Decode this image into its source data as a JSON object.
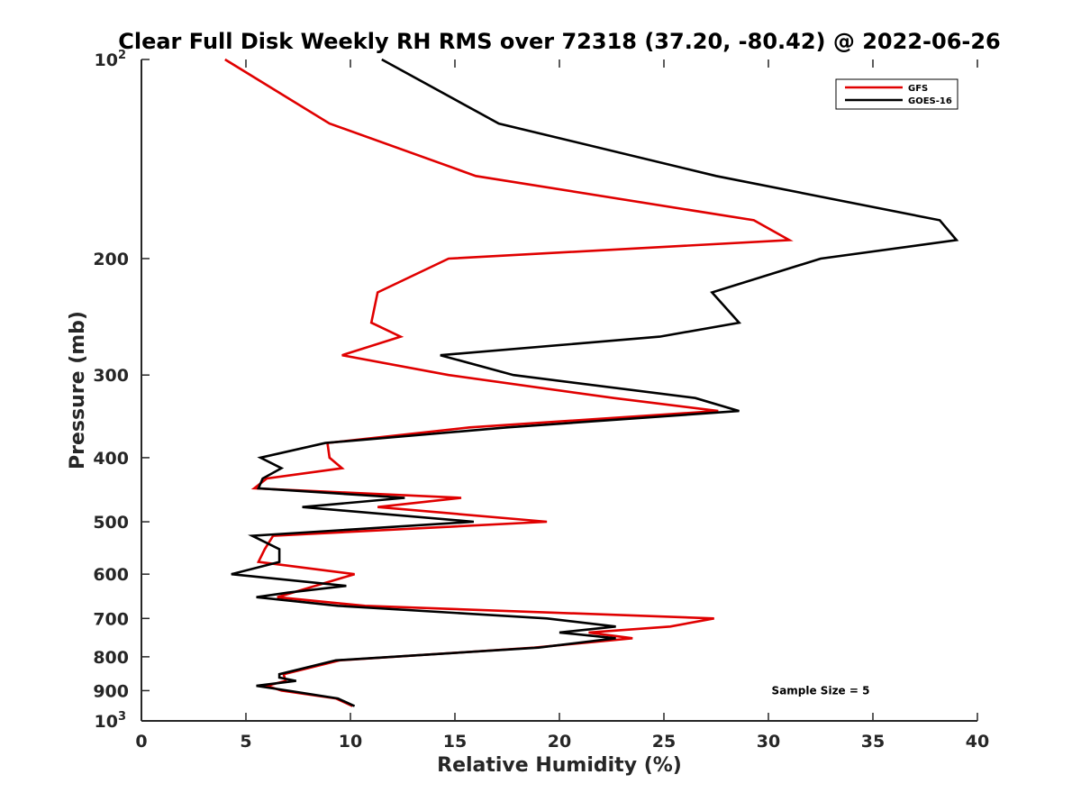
{
  "chart_data": {
    "type": "line",
    "title": "Clear Full Disk Weekly RH RMS over 72318 (37.20, -80.42) @ 2022-06-26",
    "xlabel": "Relative Humidity (%)",
    "ylabel": "Pressure (mb)",
    "xlim": [
      0,
      40
    ],
    "ylim": [
      100,
      1000
    ],
    "y_scale": "log",
    "y_reversed": true,
    "x_ticks": [
      {
        "value": 0,
        "label": "0"
      },
      {
        "value": 5,
        "label": "5"
      },
      {
        "value": 10,
        "label": "10"
      },
      {
        "value": 15,
        "label": "15"
      },
      {
        "value": 20,
        "label": "20"
      },
      {
        "value": 25,
        "label": "25"
      },
      {
        "value": 30,
        "label": "30"
      },
      {
        "value": 35,
        "label": "35"
      },
      {
        "value": 40,
        "label": "40"
      }
    ],
    "y_ticks": [
      {
        "value": 100,
        "label": "10",
        "sup": "2"
      },
      {
        "value": 200,
        "label": "200",
        "sup": ""
      },
      {
        "value": 300,
        "label": "300",
        "sup": ""
      },
      {
        "value": 400,
        "label": "400",
        "sup": ""
      },
      {
        "value": 500,
        "label": "500",
        "sup": ""
      },
      {
        "value": 600,
        "label": "600",
        "sup": ""
      },
      {
        "value": 700,
        "label": "700",
        "sup": ""
      },
      {
        "value": 800,
        "label": "800",
        "sup": ""
      },
      {
        "value": 900,
        "label": "900",
        "sup": ""
      },
      {
        "value": 1000,
        "label": "10",
        "sup": "3"
      }
    ],
    "grid": false,
    "legend_position": "top-right",
    "series": [
      {
        "name": "GFS",
        "color": "#e00000",
        "points": [
          [
            4.0,
            100
          ],
          [
            9.0,
            125
          ],
          [
            16.0,
            150
          ],
          [
            29.3,
            175
          ],
          [
            31.0,
            187.5
          ],
          [
            14.7,
            200
          ],
          [
            11.3,
            225
          ],
          [
            11.0,
            250
          ],
          [
            12.4,
            262.5
          ],
          [
            9.6,
            280
          ],
          [
            14.7,
            300
          ],
          [
            22.6,
            325
          ],
          [
            27.6,
            340
          ],
          [
            15.7,
            360
          ],
          [
            8.9,
            380
          ],
          [
            9.0,
            400
          ],
          [
            9.6,
            415
          ],
          [
            6.0,
            430
          ],
          [
            5.4,
            445
          ],
          [
            15.3,
            460
          ],
          [
            11.3,
            475
          ],
          [
            19.4,
            500
          ],
          [
            6.3,
            525
          ],
          [
            5.9,
            550
          ],
          [
            5.6,
            575
          ],
          [
            10.2,
            600
          ],
          [
            6.5,
            650
          ],
          [
            10.7,
            670
          ],
          [
            27.4,
            700
          ],
          [
            25.3,
            720
          ],
          [
            21.4,
            735
          ],
          [
            23.5,
            750
          ],
          [
            18.8,
            775
          ],
          [
            9.5,
            810
          ],
          [
            6.8,
            850
          ],
          [
            6.9,
            870
          ],
          [
            6.0,
            885
          ],
          [
            6.7,
            900
          ],
          [
            9.3,
            925
          ],
          [
            10.1,
            950
          ]
        ]
      },
      {
        "name": "GOES-16",
        "color": "#000000",
        "points": [
          [
            11.5,
            100
          ],
          [
            17.1,
            125
          ],
          [
            27.5,
            150
          ],
          [
            38.2,
            175
          ],
          [
            39.0,
            187.5
          ],
          [
            32.5,
            200
          ],
          [
            27.3,
            225
          ],
          [
            28.6,
            250
          ],
          [
            24.8,
            262.5
          ],
          [
            14.3,
            280
          ],
          [
            17.8,
            300
          ],
          [
            26.5,
            325
          ],
          [
            28.6,
            340
          ],
          [
            17.5,
            360
          ],
          [
            8.8,
            380
          ],
          [
            5.7,
            400
          ],
          [
            6.7,
            415
          ],
          [
            5.8,
            430
          ],
          [
            5.6,
            445
          ],
          [
            12.6,
            460
          ],
          [
            7.7,
            475
          ],
          [
            15.9,
            500
          ],
          [
            5.3,
            525
          ],
          [
            6.6,
            550
          ],
          [
            6.6,
            575
          ],
          [
            4.3,
            600
          ],
          [
            9.8,
            625
          ],
          [
            7.0,
            640
          ],
          [
            5.5,
            650
          ],
          [
            9.4,
            670
          ],
          [
            19.4,
            700
          ],
          [
            22.7,
            720
          ],
          [
            20.0,
            735
          ],
          [
            22.7,
            750
          ],
          [
            19.0,
            775
          ],
          [
            9.3,
            810
          ],
          [
            6.6,
            850
          ],
          [
            6.6,
            860
          ],
          [
            7.4,
            870
          ],
          [
            5.5,
            885
          ],
          [
            7.0,
            900
          ],
          [
            9.4,
            925
          ],
          [
            10.2,
            950
          ]
        ]
      }
    ],
    "annotations": [
      {
        "text": "Sample Size = 5",
        "x": 32.5,
        "y": 900
      }
    ]
  }
}
